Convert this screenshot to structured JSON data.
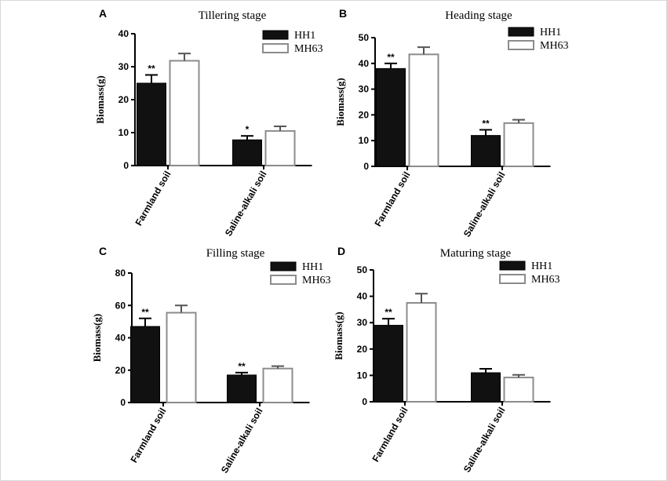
{
  "chart_data": [
    {
      "type": "bar",
      "panel": "A",
      "title": "Tillering stage",
      "ylabel": "Biomass(g)",
      "xlabel": "",
      "ylim": [
        0,
        40
      ],
      "yticks": [
        "0",
        "10",
        "20",
        "30",
        "40"
      ],
      "categories": [
        "Farmland soil",
        "Saline-alkali soil"
      ],
      "series": [
        {
          "name": "HH1",
          "color": "#111111",
          "values": [
            25,
            7.8
          ],
          "errors": [
            2.5,
            1.2
          ],
          "labels": [
            "**",
            "*"
          ]
        },
        {
          "name": "MH63",
          "color": "#ffffff",
          "values": [
            31.8,
            10.5
          ],
          "errors": [
            2.2,
            1.4
          ],
          "labels": [
            "",
            ""
          ]
        }
      ]
    },
    {
      "type": "bar",
      "panel": "B",
      "title": "Heading stage",
      "ylabel": "Biomass(g)",
      "xlabel": "",
      "ylim": [
        0,
        50
      ],
      "yticks": [
        "0",
        "10",
        "20",
        "30",
        "40",
        "50"
      ],
      "categories": [
        "Farmland soil",
        "Saline-alkali soil"
      ],
      "series": [
        {
          "name": "HH1",
          "color": "#111111",
          "values": [
            38,
            12
          ],
          "errors": [
            2,
            2.2
          ],
          "labels": [
            "**",
            "**"
          ]
        },
        {
          "name": "MH63",
          "color": "#ffffff",
          "values": [
            43.5,
            16.8
          ],
          "errors": [
            2.8,
            1.3
          ],
          "labels": [
            "",
            ""
          ]
        }
      ]
    },
    {
      "type": "bar",
      "panel": "C",
      "title": "Filling stage",
      "ylabel": "Biomass(g)",
      "xlabel": "",
      "ylim": [
        0,
        80
      ],
      "yticks": [
        "0",
        "20",
        "40",
        "60",
        "80"
      ],
      "categories": [
        "Farmland soil",
        "Saline-alkali soil"
      ],
      "series": [
        {
          "name": "HH1",
          "color": "#111111",
          "values": [
            47,
            17
          ],
          "errors": [
            5,
            1.5
          ],
          "labels": [
            "**",
            "**"
          ]
        },
        {
          "name": "MH63",
          "color": "#ffffff",
          "values": [
            55.5,
            21
          ],
          "errors": [
            4.5,
            1.5
          ],
          "labels": [
            "",
            ""
          ]
        }
      ]
    },
    {
      "type": "bar",
      "panel": "D",
      "title": "Maturing stage",
      "ylabel": "Biomass(g)",
      "xlabel": "",
      "ylim": [
        0,
        50
      ],
      "yticks": [
        "0",
        "10",
        "20",
        "30",
        "40",
        "50"
      ],
      "categories": [
        "Farmland soil",
        "Saline-alkali soil"
      ],
      "series": [
        {
          "name": "HH1",
          "color": "#111111",
          "values": [
            29,
            11
          ],
          "errors": [
            2.5,
            1.5
          ],
          "labels": [
            "**",
            ""
          ]
        },
        {
          "name": "MH63",
          "color": "#ffffff",
          "values": [
            37.5,
            9.2
          ],
          "errors": [
            3.5,
            1
          ],
          "labels": [
            "",
            ""
          ]
        }
      ]
    }
  ]
}
